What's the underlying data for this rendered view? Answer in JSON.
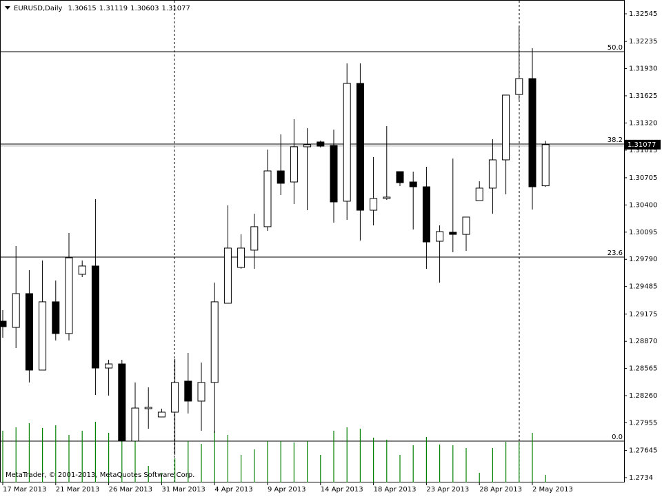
{
  "chart_data": {
    "type": "candlestick",
    "title": "EURUSD,Daily",
    "footer": "MetaTrader, © 2001-2013, MetaQuotes Software Corp.",
    "categories": [
      "17 Mar 2013",
      null,
      null,
      null,
      "21 Mar 2013",
      null,
      null,
      null,
      "26 Mar 2013",
      null,
      null,
      null,
      "31 Mar 2013",
      null,
      null,
      null,
      "4 Apr 2013",
      null,
      null,
      null,
      "9 Apr 2013",
      null,
      null,
      null,
      "14 Apr 2013",
      null,
      null,
      null,
      "18 Apr 2013",
      null,
      null,
      null,
      "23 Apr 2013",
      null,
      null,
      null,
      "28 Apr 2013",
      null,
      null,
      null,
      "2 May 2013",
      null
    ],
    "open": [
      1.29096,
      1.29026,
      1.29405,
      1.28547,
      1.29313,
      1.28957,
      1.29622,
      1.29715,
      1.2857,
      1.28616,
      1.2775,
      1.28114,
      1.28021,
      1.28075,
      1.28423,
      1.28199,
      1.28408,
      1.29297,
      1.29699,
      1.29893,
      1.30156,
      1.30782,
      1.30658,
      1.31053,
      1.31107,
      1.31068,
      1.30442,
      1.31764,
      1.30341,
      1.30473,
      1.30774,
      1.30658,
      1.30604,
      1.29993,
      1.30094,
      1.3007,
      1.30449,
      1.30589,
      1.30906,
      1.3164,
      1.31818,
      1.30615
    ],
    "high": [
      1.2922,
      1.29939,
      1.29668,
      1.29777,
      1.29552,
      1.30086,
      1.29777,
      1.30465,
      1.28663,
      1.28663,
      1.28408,
      1.28353,
      1.28114,
      1.28671,
      1.2874,
      1.28632,
      1.29529,
      1.30395,
      1.3007,
      1.30302,
      1.31022,
      1.31192,
      1.31362,
      1.31261,
      1.31122,
      1.31246,
      1.31988,
      1.31988,
      1.30937,
      1.31285,
      1.30774,
      1.30774,
      1.30828,
      1.30171,
      1.30921,
      1.30264,
      1.30666,
      1.31138,
      1.31633,
      1.32414,
      1.32159,
      1.31119
    ],
    "low": [
      1.2891,
      1.28794,
      1.28408,
      1.28547,
      1.28879,
      1.28879,
      1.29591,
      1.28268,
      1.28261,
      1.2775,
      1.2775,
      1.27889,
      1.28021,
      1.27596,
      1.2806,
      1.27866,
      1.27843,
      1.29297,
      1.29684,
      1.29684,
      1.30109,
      1.30511,
      1.30411,
      1.30341,
      1.31045,
      1.30202,
      1.30233,
      1.30001,
      1.30171,
      1.30457,
      1.30612,
      1.30125,
      1.29684,
      1.29529,
      1.29869,
      1.29885,
      1.30449,
      1.30302,
      1.30519,
      1.31579,
      1.30349,
      1.30603
    ],
    "close": [
      1.29034,
      1.29405,
      1.28547,
      1.29313,
      1.28957,
      1.29807,
      1.29715,
      1.2857,
      1.28616,
      1.2775,
      1.28121,
      1.28129,
      1.28075,
      1.28408,
      1.28199,
      1.28408,
      1.29313,
      1.29916,
      1.29916,
      1.30156,
      1.30782,
      1.30643,
      1.31053,
      1.31076,
      1.3106,
      1.30434,
      1.31764,
      1.30341,
      1.30473,
      1.30488,
      1.3065,
      1.30604,
      1.29985,
      1.30101,
      1.3007,
      1.30264,
      1.30589,
      1.30906,
      1.31633,
      1.31818,
      1.30604,
      1.31077
    ],
    "volumes": [
      75,
      80,
      86,
      79,
      83,
      69,
      75,
      88,
      72,
      70,
      60,
      24,
      14,
      35,
      60,
      56,
      75,
      69,
      40,
      48,
      60,
      60,
      58,
      60,
      40,
      75,
      80,
      78,
      65,
      62,
      40,
      54,
      66,
      55,
      54,
      50,
      14,
      50,
      59,
      59,
      72,
      11
    ],
    "up_color": "#ffffff",
    "down_color": "#000000",
    "outline_color": "#000000",
    "volume_color": "#008000",
    "ylim": [
      1.27286,
      1.327
    ],
    "yticks": [
      1.32545,
      1.32235,
      {
        "value": 1.3193,
        "label": "1.31930"
      },
      1.31625,
      {
        "value": 1.3132,
        "label": "1.31320"
      },
      1.31015,
      1.30705,
      {
        "value": 1.304,
        "label": "1.30400"
      },
      1.30095,
      {
        "value": 1.2979,
        "label": "1.29790"
      },
      1.29485,
      1.29175,
      {
        "value": 1.2887,
        "label": "1.28870"
      },
      1.28565,
      {
        "value": 1.2826,
        "label": "1.28260"
      },
      1.27955,
      1.27645,
      1.2734
    ],
    "fibo_levels": [
      {
        "label": "50.0",
        "price": 1.3212
      },
      {
        "label": "38.2",
        "price": 1.31084
      },
      {
        "label": "23.6",
        "price": 1.29815
      },
      {
        "label": "0.0",
        "price": 1.2775
      }
    ]
  }
}
